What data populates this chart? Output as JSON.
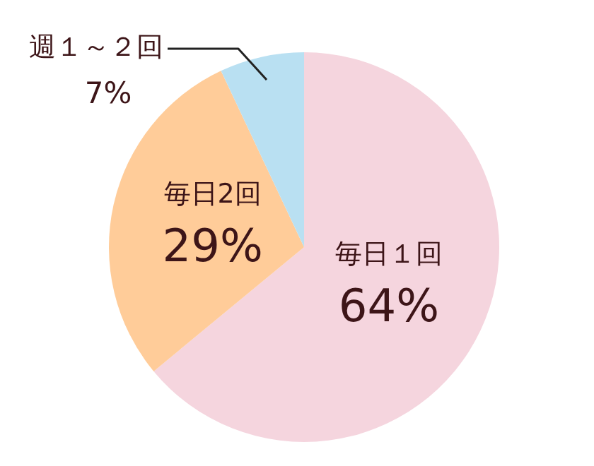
{
  "chart_data": {
    "type": "pie",
    "categories": [
      "毎日１回",
      "毎日2回",
      "週１～２回"
    ],
    "values": [
      64,
      29,
      7
    ],
    "value_labels": [
      "64%",
      "29%",
      "7%"
    ],
    "colors": [
      "#f5d5de",
      "#ffcc99",
      "#b9e0f2"
    ],
    "legend": false
  }
}
